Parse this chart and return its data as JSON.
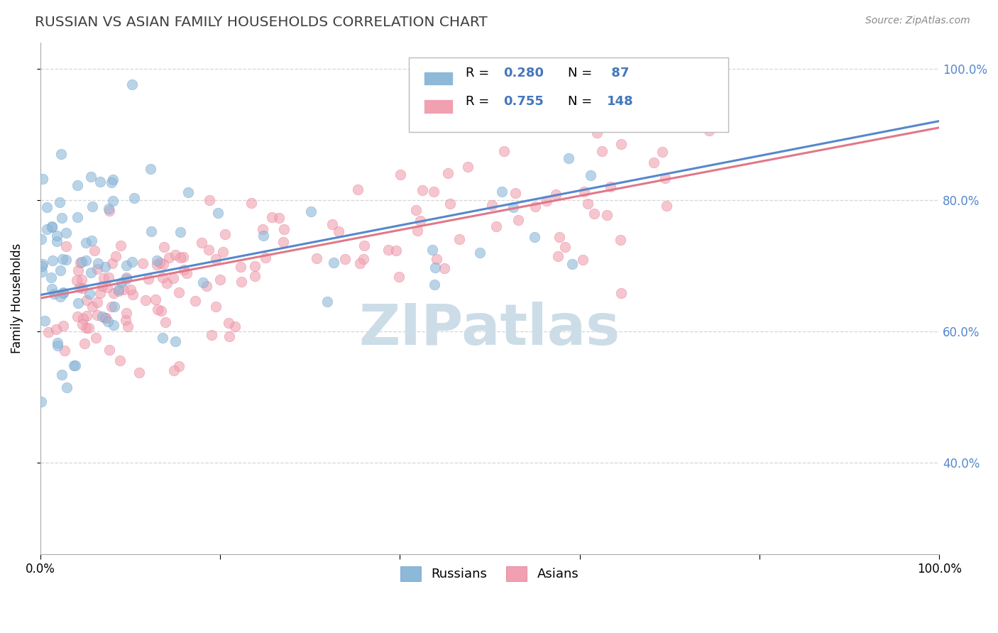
{
  "title": "RUSSIAN VS ASIAN FAMILY HOUSEHOLDS CORRELATION CHART",
  "source_text": "Source: ZipAtlas.com",
  "ylabel": "Family Households",
  "xlim": [
    0.0,
    1.0
  ],
  "ylim": [
    0.26,
    1.04
  ],
  "russian_color": "#8db8d8",
  "russian_edge_color": "#6699cc",
  "asian_color": "#f0a0b0",
  "asian_edge_color": "#e07090",
  "trendline_russian_color": "#5588cc",
  "trendline_asian_color": "#e07888",
  "watermark_text": "ZIPatlas",
  "watermark_color": "#ccdde8",
  "background_color": "#ffffff",
  "grid_color": "#cccccc",
  "legend_r_color": "#4477bb",
  "title_color": "#404040",
  "source_color": "#888888",
  "right_tick_color": "#5588cc",
  "bottom_legend_labels": [
    "Russians",
    "Asians"
  ]
}
